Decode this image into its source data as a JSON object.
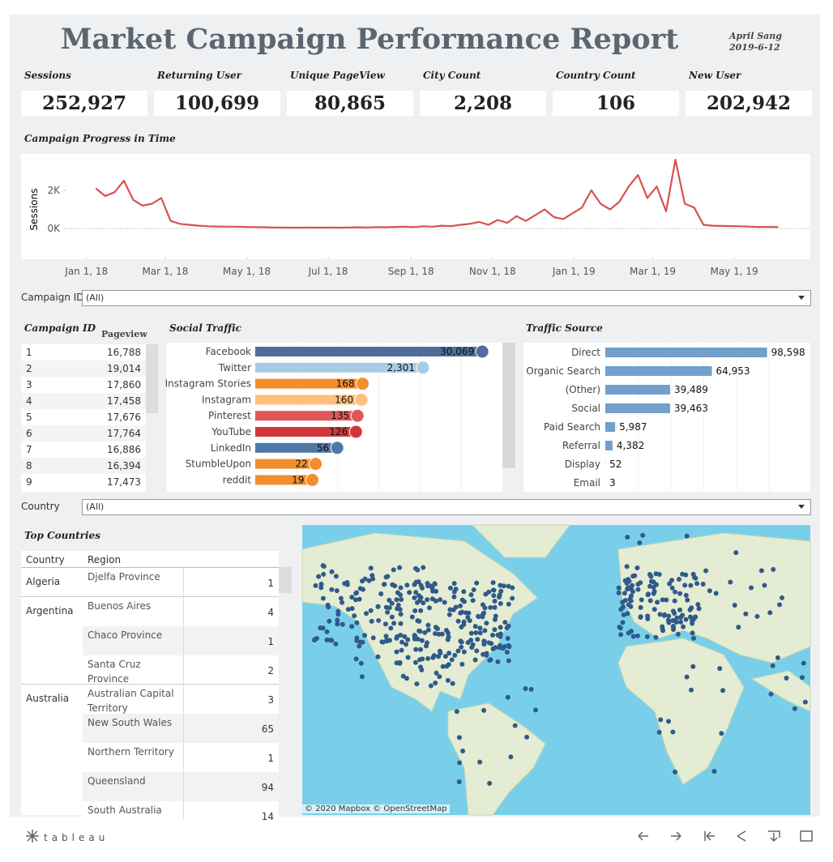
{
  "header": {
    "title": "Market Campaign Performance Report",
    "author": "April Sang",
    "date": "2019-6-12"
  },
  "kpis": [
    {
      "label": "Sessions",
      "value": "252,927"
    },
    {
      "label": "Returning User",
      "value": "100,699"
    },
    {
      "label": "Unique PageView",
      "value": "80,865"
    },
    {
      "label": "City Count",
      "value": "2,208"
    },
    {
      "label": "Country Count",
      "value": "106"
    },
    {
      "label": "New User",
      "value": "202,942"
    }
  ],
  "filters": [
    {
      "label": "Campaign ID",
      "value": "(All)"
    },
    {
      "label": "Country",
      "value": "(All)"
    }
  ],
  "campaign_table": {
    "title": "Campaign ID",
    "column": "Pageview",
    "rows": [
      [
        "1",
        "16,788"
      ],
      [
        "2",
        "19,014"
      ],
      [
        "3",
        "17,860"
      ],
      [
        "4",
        "17,458"
      ],
      [
        "5",
        "17,676"
      ],
      [
        "6",
        "17,764"
      ],
      [
        "7",
        "16,886"
      ],
      [
        "8",
        "16,394"
      ],
      [
        "9",
        "17,473"
      ]
    ]
  },
  "countries_table": {
    "title": "Top Countries",
    "columns": [
      "Country",
      "Region"
    ],
    "groups": [
      {
        "country": "Algeria",
        "rows": [
          [
            "Djelfa Province",
            "1"
          ]
        ]
      },
      {
        "country": "Argentina",
        "rows": [
          [
            "Buenos Aires",
            "4"
          ],
          [
            "Chaco Province",
            "1"
          ],
          [
            "Santa Cruz Province",
            "2"
          ]
        ]
      },
      {
        "country": "Australia",
        "rows": [
          [
            "Australian Capital Territory",
            "3"
          ],
          [
            "New South Wales",
            "65"
          ],
          [
            "Northern Territory",
            "1"
          ],
          [
            "Queensland",
            "94"
          ],
          [
            "South Australia",
            "14"
          ]
        ]
      }
    ]
  },
  "map": {
    "attribution": "© 2020 Mapbox © OpenStreetMap"
  },
  "footer": {
    "brand": "tableau"
  },
  "chart_data": [
    {
      "type": "line",
      "title": "Campaign Progress in Time",
      "y_label": "Sessions",
      "color": "#d6534f",
      "x": [
        "2018-01-08",
        "2018-01-15",
        "2018-01-22",
        "2018-01-29",
        "2018-02-05",
        "2018-02-12",
        "2018-02-19",
        "2018-02-26",
        "2018-03-05",
        "2018-03-12",
        "2018-03-19",
        "2018-03-26",
        "2018-04-02",
        "2018-04-09",
        "2018-04-16",
        "2018-04-23",
        "2018-04-30",
        "2018-05-07",
        "2018-05-14",
        "2018-05-21",
        "2018-05-28",
        "2018-06-04",
        "2018-06-11",
        "2018-06-18",
        "2018-06-25",
        "2018-07-02",
        "2018-07-09",
        "2018-07-16",
        "2018-07-23",
        "2018-07-30",
        "2018-08-06",
        "2018-08-13",
        "2018-08-20",
        "2018-08-27",
        "2018-09-03",
        "2018-09-10",
        "2018-09-17",
        "2018-09-24",
        "2018-10-01",
        "2018-10-08",
        "2018-10-15",
        "2018-10-22",
        "2018-10-29",
        "2018-11-05",
        "2018-11-12",
        "2018-11-19",
        "2018-11-26",
        "2018-12-03",
        "2018-12-10",
        "2018-12-17",
        "2018-12-24",
        "2018-12-31",
        "2019-01-07",
        "2019-01-14",
        "2019-01-21",
        "2019-01-28",
        "2019-02-04",
        "2019-02-11",
        "2019-02-18",
        "2019-02-25",
        "2019-03-04",
        "2019-03-11",
        "2019-03-18",
        "2019-03-25",
        "2019-04-01",
        "2019-04-08",
        "2019-04-15",
        "2019-04-22",
        "2019-04-29",
        "2019-05-06",
        "2019-05-13",
        "2019-05-20",
        "2019-05-27",
        "2019-06-03"
      ],
      "values": [
        2100,
        1700,
        1900,
        2500,
        1500,
        1200,
        1300,
        1600,
        400,
        250,
        200,
        150,
        120,
        110,
        100,
        100,
        90,
        80,
        70,
        60,
        60,
        50,
        50,
        60,
        50,
        60,
        50,
        60,
        70,
        60,
        80,
        70,
        90,
        100,
        80,
        120,
        100,
        150,
        130,
        200,
        250,
        350,
        200,
        450,
        300,
        650,
        400,
        700,
        1000,
        600,
        500,
        800,
        1100,
        2000,
        1300,
        1000,
        1400,
        2200,
        2800,
        1600,
        2200,
        900,
        3600,
        1300,
        1100,
        200,
        150,
        140,
        130,
        120,
        100,
        90,
        90,
        80
      ],
      "xlim": [
        "2017-12-17",
        "2019-06-27"
      ],
      "xticks": [
        {
          "value": "2018-01-01",
          "label": "Jan 1, 18"
        },
        {
          "value": "2018-03-01",
          "label": "Mar 1, 18"
        },
        {
          "value": "2018-05-01",
          "label": "May 1, 18"
        },
        {
          "value": "2018-07-01",
          "label": "Jul 1, 18"
        },
        {
          "value": "2018-09-01",
          "label": "Sep 1, 18"
        },
        {
          "value": "2018-11-01",
          "label": "Nov 1, 18"
        },
        {
          "value": "2019-01-01",
          "label": "Jan 1, 19"
        },
        {
          "value": "2019-03-01",
          "label": "Mar 1, 19"
        },
        {
          "value": "2019-05-01",
          "label": "May 1, 19"
        }
      ],
      "ylim": [
        -1600,
        3900
      ],
      "yticks": [
        {
          "value": 0,
          "label": "0K"
        },
        {
          "value": 2000,
          "label": "2K"
        }
      ]
    },
    {
      "type": "bar",
      "orientation": "horizontal",
      "title": "Social Traffic",
      "log_scale": true,
      "categories": [
        "Facebook",
        "Twitter",
        "Instagram Stories",
        "Instagram",
        "Pinterest",
        "YouTube",
        "LinkedIn",
        "StumbleUpon",
        "reddit"
      ],
      "values": [
        30069,
        2301,
        168,
        160,
        135,
        126,
        56,
        22,
        19
      ],
      "value_labels": [
        "30,069",
        "2,301",
        "168",
        "160",
        "135",
        "126",
        "56",
        "22",
        "19"
      ],
      "colors": [
        "#4e6d9a",
        "#a8cce6",
        "#f28e2b",
        "#ffbe7d",
        "#e15759",
        "#d3363a",
        "#4e79a7",
        "#f28e2b",
        "#f28e2b"
      ],
      "xlim": [
        1.6,
        72000
      ]
    },
    {
      "type": "bar",
      "orientation": "horizontal",
      "title": "Traffic Source",
      "log_scale": false,
      "categories": [
        "Direct",
        "Organic Search",
        "(Other)",
        "Social",
        "Paid Search",
        "Referral",
        "Display",
        "Email"
      ],
      "values": [
        98598,
        64953,
        39489,
        39463,
        5987,
        4382,
        52,
        3
      ],
      "value_labels": [
        "98,598",
        "64,953",
        "39,489",
        "39,463",
        "5,987",
        "4,382",
        "52",
        "3"
      ],
      "color": "#729fcb",
      "xlim": [
        0,
        120000
      ]
    }
  ]
}
